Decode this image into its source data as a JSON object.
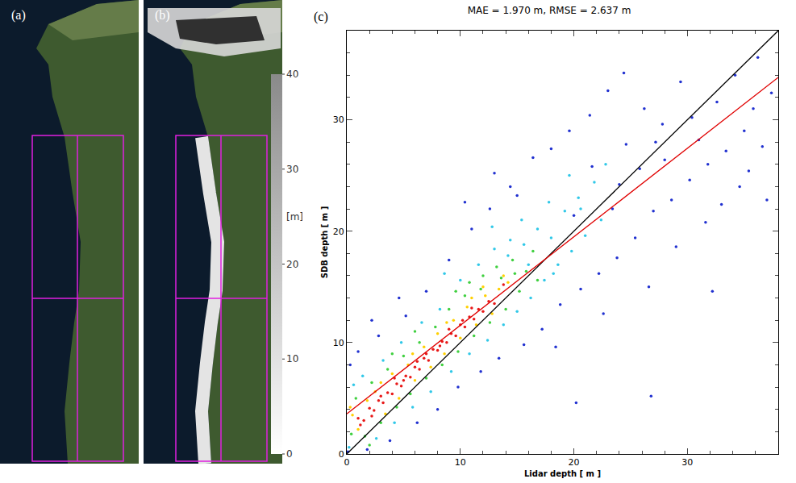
{
  "panels": [
    {
      "label": "(a)"
    },
    {
      "label": "(b)",
      "colorbar": {
        "range": [
          0,
          40
        ],
        "ticks": [
          0,
          10,
          20,
          30,
          40
        ],
        "label": "[m]"
      }
    }
  ],
  "chart_data": {
    "type": "scatter",
    "label": "(c)",
    "title": "MAE = 1.970 m, RMSE = 2.637 m",
    "x_label": "Lidar depth [ m ]",
    "y_label": "SDB depth [ m ]",
    "xlim": [
      0,
      38
    ],
    "ylim": [
      0,
      38
    ],
    "xticks": [
      0,
      10,
      20,
      30
    ],
    "yticks": [
      0,
      10,
      20,
      30
    ],
    "grid": false,
    "series": [
      {
        "type": "scatter",
        "marker": "circle",
        "color": "#2030d0",
        "x": [
          0.1,
          0.3,
          1.0,
          1.8,
          2.8,
          3.8,
          5.2,
          6.2,
          7.0,
          8.0,
          9.0,
          9.8,
          11.0,
          11.8,
          12.6,
          13.4,
          14.4,
          15.6,
          16.4,
          17.2,
          18.0,
          18.8,
          19.6,
          20.6,
          21.4,
          22.2,
          23.0,
          23.8,
          24.6,
          25.4,
          26.2,
          27.0,
          27.8,
          28.6,
          29.4,
          30.2,
          31.0,
          31.8,
          32.6,
          33.4,
          34.2,
          35.0,
          35.8,
          36.6,
          37.4,
          24.0,
          25.8,
          28.0,
          30.4,
          33.0,
          35.4,
          29.0,
          26.6,
          31.6,
          22.6,
          20.0,
          21.6,
          23.4,
          27.2,
          26.8,
          15.0,
          13.0,
          20.2,
          24.4,
          36.2,
          32.2,
          18.4,
          10.4,
          4.6,
          2.2,
          34.6,
          37.0
        ],
        "values": [
          0.2,
          8.0,
          9.2,
          0.4,
          10.6,
          1.2,
          12.4,
          2.8,
          14.6,
          4.0,
          17.4,
          6.0,
          20.2,
          7.4,
          22.0,
          8.6,
          24.0,
          9.8,
          26.6,
          11.2,
          27.4,
          13.4,
          29.0,
          14.8,
          30.4,
          16.2,
          32.6,
          17.6,
          27.8,
          19.4,
          31.0,
          21.8,
          29.6,
          22.8,
          33.4,
          24.6,
          28.2,
          26.0,
          31.6,
          27.2,
          34.0,
          29.0,
          31.0,
          27.6,
          32.4,
          24.2,
          25.6,
          26.4,
          30.2,
          22.4,
          25.4,
          18.6,
          15.0,
          20.8,
          12.6,
          21.4,
          25.8,
          22.0,
          28.0,
          5.2,
          23.2,
          25.2,
          4.6,
          34.2,
          35.6,
          14.6,
          9.6,
          22.6,
          14.0,
          12.0,
          24.0,
          22.8
        ]
      },
      {
        "type": "scatter",
        "marker": "circle",
        "color": "#30c8e8",
        "x": [
          0.2,
          0.6,
          1.4,
          2.6,
          3.2,
          4.2,
          4.8,
          5.8,
          6.6,
          7.4,
          8.2,
          9.2,
          10.0,
          10.8,
          11.6,
          12.4,
          13.0,
          13.8,
          14.4,
          15.0,
          15.6,
          16.2,
          16.8,
          17.4,
          18.0,
          18.6,
          19.2,
          19.8,
          20.4,
          21.0,
          21.8,
          22.4,
          17.8,
          15.4,
          12.8,
          8.6,
          19.6,
          22.8,
          16.0,
          18.2,
          20.6,
          14.2
        ],
        "values": [
          0.6,
          6.2,
          7.0,
          1.4,
          8.4,
          2.8,
          10.0,
          4.2,
          11.8,
          5.6,
          13.0,
          7.4,
          15.6,
          9.0,
          17.0,
          10.2,
          18.4,
          11.6,
          19.2,
          12.8,
          18.8,
          14.0,
          20.2,
          15.6,
          19.4,
          17.0,
          21.8,
          18.2,
          23.0,
          19.6,
          24.4,
          21.0,
          22.6,
          21.0,
          20.4,
          16.2,
          25.0,
          26.0,
          17.0,
          16.2,
          22.0,
          17.8
        ]
      },
      {
        "type": "scatter",
        "marker": "circle",
        "color": "#40d040",
        "x": [
          0.4,
          0.8,
          1.6,
          2.2,
          3.0,
          3.6,
          4.4,
          5.0,
          5.6,
          6.4,
          7.0,
          7.8,
          8.4,
          9.0,
          9.8,
          10.4,
          11.2,
          12.0,
          12.6,
          13.2,
          14.0,
          14.6,
          15.2,
          15.8,
          16.4,
          16.8,
          14.8,
          13.6,
          11.8,
          10.8,
          6.0,
          4.0,
          2.0,
          9.6
        ],
        "values": [
          1.8,
          5.0,
          1.6,
          6.4,
          2.8,
          7.6,
          4.2,
          8.8,
          5.4,
          10.0,
          6.8,
          11.4,
          8.0,
          13.0,
          9.2,
          14.2,
          10.6,
          16.0,
          11.8,
          16.8,
          13.0,
          17.4,
          14.6,
          16.4,
          18.2,
          15.6,
          16.2,
          15.8,
          14.8,
          15.4,
          11.0,
          9.0,
          0.8,
          14.6
        ]
      },
      {
        "type": "scatter",
        "marker": "circle",
        "color": "#ffd000",
        "x": [
          0.5,
          1.0,
          1.8,
          2.5,
          3.4,
          4.0,
          4.6,
          5.4,
          6.0,
          6.8,
          7.4,
          8.0,
          8.6,
          9.4,
          10.0,
          10.6,
          11.4,
          12.2,
          12.8,
          13.4,
          13.8,
          14.2,
          12.0,
          3.0,
          5.8,
          8.8,
          0.3,
          11.0
        ],
        "values": [
          3.5,
          2.2,
          4.8,
          5.6,
          3.6,
          7.2,
          5.0,
          8.0,
          6.6,
          9.6,
          7.8,
          10.8,
          9.0,
          12.0,
          10.4,
          13.2,
          11.6,
          14.2,
          12.6,
          14.8,
          16.0,
          15.4,
          15.0,
          6.4,
          9.0,
          11.8,
          4.2,
          14.0
        ]
      },
      {
        "type": "scatter",
        "marker": "circle",
        "color": "#e81818",
        "x": [
          1.0,
          1.5,
          2.0,
          2.4,
          2.8,
          3.2,
          3.6,
          4.0,
          4.4,
          4.8,
          5.2,
          5.6,
          6.0,
          6.4,
          6.8,
          7.2,
          7.6,
          8.0,
          8.4,
          8.8,
          9.2,
          9.6,
          10.0,
          10.4,
          10.8,
          11.2,
          11.6,
          12.0,
          12.5,
          13.0,
          13.8,
          1.2,
          2.2,
          3.0,
          4.2,
          5.0,
          6.2,
          7.0,
          8.2,
          9.0,
          10.2,
          11.0
        ],
        "values": [
          3.2,
          3.0,
          4.1,
          3.9,
          4.8,
          4.6,
          5.5,
          5.4,
          6.3,
          6.1,
          7.0,
          6.9,
          7.8,
          7.6,
          8.6,
          8.4,
          9.4,
          9.3,
          10.1,
          10.0,
          10.8,
          10.6,
          11.6,
          11.4,
          12.3,
          12.1,
          13.0,
          12.8,
          13.7,
          13.5,
          15.2,
          2.6,
          3.4,
          5.2,
          6.8,
          6.6,
          8.3,
          9.0,
          9.7,
          11.2,
          12.0,
          13.1
        ]
      },
      {
        "type": "line",
        "line_style": "solid",
        "color": "#000000",
        "x": [
          0,
          38
        ],
        "values": [
          0,
          38
        ]
      },
      {
        "type": "line",
        "line_style": "solid",
        "color": "#e00000",
        "x": [
          0,
          38
        ],
        "values": [
          3.6,
          33.8
        ]
      }
    ]
  }
}
